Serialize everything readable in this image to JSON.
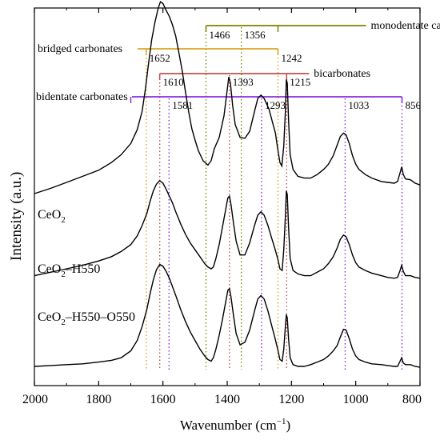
{
  "chart_data": {
    "type": "line",
    "xlabel_main": "Wavenumber (cm",
    "xlabel_sup": "−1",
    "xlabel_end": ")",
    "ylabel": "Intensity (a.u.)",
    "xlim": [
      2000,
      800
    ],
    "x_ticks": [
      2000,
      1800,
      1600,
      1400,
      1200,
      1000,
      800
    ],
    "series": [
      {
        "name": "CeO2",
        "label_main": "CeO",
        "label_parts": [
          "2"
        ],
        "offset": 2.0,
        "points": [
          [
            2000,
            0.0
          ],
          [
            1950,
            0.06
          ],
          [
            1900,
            0.13
          ],
          [
            1850,
            0.2
          ],
          [
            1800,
            0.27
          ],
          [
            1760,
            0.36
          ],
          [
            1730,
            0.45
          ],
          [
            1700,
            0.58
          ],
          [
            1680,
            0.74
          ],
          [
            1665,
            0.95
          ],
          [
            1655,
            1.2
          ],
          [
            1645,
            1.5
          ],
          [
            1635,
            1.78
          ],
          [
            1625,
            1.98
          ],
          [
            1615,
            2.14
          ],
          [
            1608,
            2.22
          ],
          [
            1600,
            2.2
          ],
          [
            1590,
            2.12
          ],
          [
            1580,
            2.05
          ],
          [
            1570,
            1.95
          ],
          [
            1560,
            1.82
          ],
          [
            1550,
            1.62
          ],
          [
            1540,
            1.42
          ],
          [
            1530,
            1.18
          ],
          [
            1520,
            0.95
          ],
          [
            1510,
            0.75
          ],
          [
            1500,
            0.62
          ],
          [
            1490,
            0.5
          ],
          [
            1475,
            0.38
          ],
          [
            1460,
            0.33
          ],
          [
            1450,
            0.38
          ],
          [
            1440,
            0.52
          ],
          [
            1425,
            0.65
          ],
          [
            1410,
            0.9
          ],
          [
            1400,
            1.2
          ],
          [
            1395,
            1.35
          ],
          [
            1390,
            1.28
          ],
          [
            1383,
            1.02
          ],
          [
            1375,
            0.8
          ],
          [
            1360,
            0.65
          ],
          [
            1345,
            0.64
          ],
          [
            1330,
            0.72
          ],
          [
            1315,
            0.95
          ],
          [
            1305,
            1.1
          ],
          [
            1295,
            1.14
          ],
          [
            1285,
            1.1
          ],
          [
            1270,
            0.98
          ],
          [
            1260,
            0.84
          ],
          [
            1250,
            0.7
          ],
          [
            1243,
            0.52
          ],
          [
            1236,
            0.36
          ],
          [
            1230,
            0.32
          ],
          [
            1224,
            0.55
          ],
          [
            1219,
            0.95
          ],
          [
            1216,
            1.32
          ],
          [
            1213,
            1.28
          ],
          [
            1209,
            0.85
          ],
          [
            1204,
            0.45
          ],
          [
            1195,
            0.28
          ],
          [
            1180,
            0.2
          ],
          [
            1160,
            0.18
          ],
          [
            1140,
            0.18
          ],
          [
            1120,
            0.22
          ],
          [
            1100,
            0.28
          ],
          [
            1085,
            0.34
          ],
          [
            1070,
            0.44
          ],
          [
            1058,
            0.56
          ],
          [
            1048,
            0.66
          ],
          [
            1038,
            0.7
          ],
          [
            1030,
            0.68
          ],
          [
            1020,
            0.58
          ],
          [
            1010,
            0.44
          ],
          [
            1000,
            0.34
          ],
          [
            990,
            0.28
          ],
          [
            970,
            0.22
          ],
          [
            950,
            0.18
          ],
          [
            920,
            0.14
          ],
          [
            900,
            0.13
          ],
          [
            880,
            0.12
          ],
          [
            870,
            0.14
          ],
          [
            862,
            0.24
          ],
          [
            857,
            0.31
          ],
          [
            852,
            0.22
          ],
          [
            845,
            0.17
          ],
          [
            830,
            0.16
          ],
          [
            815,
            0.12
          ],
          [
            800,
            0.1
          ]
        ]
      },
      {
        "name": "CeO2-H550",
        "label_main": "CeO",
        "label_parts": [
          "2",
          "–H550"
        ],
        "offset": 1.05,
        "points": [
          [
            2000,
            0.0
          ],
          [
            1950,
            0.04
          ],
          [
            1900,
            0.08
          ],
          [
            1850,
            0.12
          ],
          [
            1800,
            0.17
          ],
          [
            1760,
            0.22
          ],
          [
            1730,
            0.28
          ],
          [
            1700,
            0.36
          ],
          [
            1680,
            0.46
          ],
          [
            1665,
            0.58
          ],
          [
            1650,
            0.72
          ],
          [
            1640,
            0.86
          ],
          [
            1630,
            0.98
          ],
          [
            1620,
            1.06
          ],
          [
            1610,
            1.1
          ],
          [
            1600,
            1.07
          ],
          [
            1590,
            1.0
          ],
          [
            1580,
            0.92
          ],
          [
            1570,
            0.84
          ],
          [
            1560,
            0.74
          ],
          [
            1545,
            0.6
          ],
          [
            1530,
            0.48
          ],
          [
            1515,
            0.38
          ],
          [
            1500,
            0.3
          ],
          [
            1485,
            0.22
          ],
          [
            1470,
            0.14
          ],
          [
            1460,
            0.1
          ],
          [
            1450,
            0.08
          ],
          [
            1443,
            0.1
          ],
          [
            1435,
            0.2
          ],
          [
            1425,
            0.36
          ],
          [
            1415,
            0.56
          ],
          [
            1405,
            0.76
          ],
          [
            1398,
            0.9
          ],
          [
            1393,
            0.92
          ],
          [
            1388,
            0.82
          ],
          [
            1380,
            0.6
          ],
          [
            1372,
            0.4
          ],
          [
            1360,
            0.24
          ],
          [
            1345,
            0.24
          ],
          [
            1330,
            0.38
          ],
          [
            1315,
            0.58
          ],
          [
            1305,
            0.7
          ],
          [
            1295,
            0.74
          ],
          [
            1285,
            0.7
          ],
          [
            1273,
            0.58
          ],
          [
            1262,
            0.44
          ],
          [
            1252,
            0.32
          ],
          [
            1243,
            0.2
          ],
          [
            1236,
            0.08
          ],
          [
            1229,
            0.06
          ],
          [
            1224,
            0.3
          ],
          [
            1219,
            0.68
          ],
          [
            1216,
            0.98
          ],
          [
            1213,
            0.94
          ],
          [
            1209,
            0.56
          ],
          [
            1204,
            0.2
          ],
          [
            1195,
            0.06
          ],
          [
            1180,
            0.02
          ],
          [
            1160,
            0.0
          ],
          [
            1140,
            0.0
          ],
          [
            1120,
            0.04
          ],
          [
            1100,
            0.08
          ],
          [
            1085,
            0.14
          ],
          [
            1070,
            0.22
          ],
          [
            1058,
            0.32
          ],
          [
            1048,
            0.42
          ],
          [
            1038,
            0.47
          ],
          [
            1030,
            0.45
          ],
          [
            1020,
            0.36
          ],
          [
            1010,
            0.24
          ],
          [
            1000,
            0.15
          ],
          [
            990,
            0.1
          ],
          [
            970,
            0.06
          ],
          [
            950,
            0.03
          ],
          [
            920,
            0.0
          ],
          [
            900,
            -0.02
          ],
          [
            880,
            -0.03
          ],
          [
            870,
            -0.02
          ],
          [
            862,
            0.06
          ],
          [
            857,
            0.12
          ],
          [
            852,
            0.05
          ],
          [
            845,
            0.0
          ],
          [
            830,
            0.0
          ],
          [
            815,
            -0.02
          ],
          [
            800,
            -0.03
          ]
        ]
      },
      {
        "name": "CeO2-H550-O550",
        "label_main": "CeO",
        "label_parts": [
          "2",
          "–H550–O550"
        ],
        "offset": 0.0,
        "points": [
          [
            2000,
            0.0
          ],
          [
            1950,
            0.01
          ],
          [
            1900,
            0.02
          ],
          [
            1850,
            0.03
          ],
          [
            1800,
            0.05
          ],
          [
            1760,
            0.07
          ],
          [
            1730,
            0.1
          ],
          [
            1700,
            0.18
          ],
          [
            1680,
            0.3
          ],
          [
            1665,
            0.46
          ],
          [
            1650,
            0.66
          ],
          [
            1640,
            0.84
          ],
          [
            1630,
            1.0
          ],
          [
            1620,
            1.12
          ],
          [
            1610,
            1.18
          ],
          [
            1600,
            1.16
          ],
          [
            1590,
            1.1
          ],
          [
            1580,
            1.02
          ],
          [
            1570,
            0.92
          ],
          [
            1560,
            0.82
          ],
          [
            1545,
            0.66
          ],
          [
            1530,
            0.52
          ],
          [
            1515,
            0.4
          ],
          [
            1500,
            0.3
          ],
          [
            1485,
            0.2
          ],
          [
            1470,
            0.12
          ],
          [
            1460,
            0.08
          ],
          [
            1450,
            0.06
          ],
          [
            1443,
            0.1
          ],
          [
            1435,
            0.2
          ],
          [
            1425,
            0.36
          ],
          [
            1415,
            0.54
          ],
          [
            1405,
            0.74
          ],
          [
            1398,
            0.88
          ],
          [
            1393,
            0.9
          ],
          [
            1388,
            0.8
          ],
          [
            1380,
            0.58
          ],
          [
            1372,
            0.38
          ],
          [
            1360,
            0.25
          ],
          [
            1345,
            0.28
          ],
          [
            1330,
            0.42
          ],
          [
            1315,
            0.64
          ],
          [
            1305,
            0.78
          ],
          [
            1295,
            0.82
          ],
          [
            1285,
            0.78
          ],
          [
            1273,
            0.64
          ],
          [
            1262,
            0.48
          ],
          [
            1252,
            0.34
          ],
          [
            1243,
            0.2
          ],
          [
            1236,
            0.08
          ],
          [
            1229,
            0.06
          ],
          [
            1224,
            0.2
          ],
          [
            1219,
            0.46
          ],
          [
            1216,
            0.6
          ],
          [
            1213,
            0.56
          ],
          [
            1209,
            0.32
          ],
          [
            1204,
            0.1
          ],
          [
            1195,
            0.02
          ],
          [
            1180,
            0.0
          ],
          [
            1160,
            0.0
          ],
          [
            1140,
            0.02
          ],
          [
            1120,
            0.05
          ],
          [
            1100,
            0.08
          ],
          [
            1085,
            0.12
          ],
          [
            1070,
            0.18
          ],
          [
            1058,
            0.24
          ],
          [
            1048,
            0.34
          ],
          [
            1038,
            0.43
          ],
          [
            1030,
            0.42
          ],
          [
            1020,
            0.32
          ],
          [
            1010,
            0.2
          ],
          [
            1000,
            0.12
          ],
          [
            990,
            0.08
          ],
          [
            970,
            0.05
          ],
          [
            950,
            0.03
          ],
          [
            920,
            0.02
          ],
          [
            900,
            0.01
          ],
          [
            880,
            0.0
          ],
          [
            870,
            0.0
          ],
          [
            862,
            0.06
          ],
          [
            857,
            0.1
          ],
          [
            852,
            0.04
          ],
          [
            845,
            0.02
          ],
          [
            830,
            0.02
          ],
          [
            815,
            0.0
          ],
          [
            800,
            -0.01
          ]
        ]
      }
    ],
    "annotation_groups": [
      {
        "label": "monodentate carbonates",
        "color": "#808000",
        "range": [
          1466,
          1242
        ],
        "label_side": "right",
        "level": 1,
        "peaks": [
          {
            "value": 1466,
            "label": "1466",
            "label_side": "right"
          },
          {
            "value": 1356,
            "label": "1356",
            "label_side": "right"
          }
        ]
      },
      {
        "label": "bridged carbonates",
        "color": "#DAA520",
        "range": [
          1652,
          1242
        ],
        "label_side": "left",
        "level": 2,
        "peaks": [
          {
            "value": 1652,
            "label": "1652",
            "label_side": "right"
          },
          {
            "value": 1242,
            "label": "1242",
            "label_side": "right"
          }
        ]
      },
      {
        "label": "bicarbonates",
        "color": "#C0504D",
        "range": [
          1610,
          1215
        ],
        "label_side": "right",
        "level": 3,
        "peaks": [
          {
            "value": 1610,
            "label": "1610",
            "label_side": "right"
          },
          {
            "value": 1393,
            "label": "1393",
            "label_side": "right"
          },
          {
            "value": 1215,
            "label": "1215",
            "label_side": "right"
          }
        ]
      },
      {
        "label": "bidentate carbonates",
        "color": "#8A2BE2",
        "range": [
          1700,
          856
        ],
        "label_side": "left",
        "level": 4,
        "peaks": [
          {
            "value": 1581,
            "label": "1581",
            "label_side": "right"
          },
          {
            "value": 1293,
            "label": "1293",
            "label_side": "right"
          },
          {
            "value": 1033,
            "label": "1033",
            "label_side": "right"
          },
          {
            "value": 856,
            "label": "856",
            "label_side": "right"
          }
        ]
      }
    ]
  }
}
